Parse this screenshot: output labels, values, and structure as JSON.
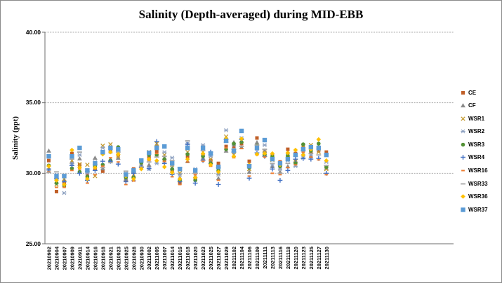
{
  "chart_data": {
    "type": "scatter",
    "title": "Salinity (Depth-averaged) during MID-EBB",
    "xlabel": "",
    "ylabel": "Salinity (ppt)",
    "ylim": [
      25,
      40
    ],
    "y_ticks": [
      40,
      35,
      30,
      25
    ],
    "y_tick_labels": [
      "40.00",
      "35.00",
      "30.00",
      "25.00"
    ],
    "grid": true,
    "legend_position": "right",
    "x_axis_extends_beyond_data": true,
    "x_total_slots": 53,
    "categories": [
      "20210902",
      "20210904",
      "20210907",
      "20210909",
      "20210911",
      "20210914",
      "20210916",
      "20210918",
      "20210921",
      "20210923",
      "20210925",
      "20210928",
      "20210930",
      "20211002",
      "20211005",
      "20211007",
      "20211014",
      "20211016",
      "20211018",
      "20211020",
      "20211023",
      "20211025",
      "20211027",
      "20211029",
      "20211102",
      "20211104",
      "20211106",
      "20211109",
      "20211111",
      "20211113",
      "20211116",
      "20211118",
      "20211120",
      "20211123",
      "20211125",
      "20211127",
      "20211130"
    ],
    "series": [
      {
        "name": "CE",
        "marker": "square",
        "color": "#C05F28",
        "values": [
          30.9,
          28.7,
          29.3,
          31.4,
          30.6,
          29.9,
          30.3,
          30.15,
          31.6,
          31.3,
          29.5,
          30.3,
          30.8,
          31.1,
          31.55,
          30.9,
          30.2,
          29.3,
          31.2,
          29.6,
          31.3,
          30.9,
          30.7,
          31.9,
          31.9,
          32.1,
          30.85,
          32.5,
          31.5,
          31.3,
          30.8,
          31.7,
          31.4,
          31.8,
          31.5,
          31.6,
          31.5
        ]
      },
      {
        "name": "CF",
        "marker": "triangle",
        "color": "#8B8B8B",
        "values": [
          31.6,
          29.4,
          29.5,
          30.8,
          31.05,
          29.7,
          31.1,
          30.35,
          31.0,
          31.1,
          29.6,
          29.8,
          30.6,
          30.6,
          32.0,
          31.1,
          30.4,
          29.7,
          30.85,
          29.8,
          31.1,
          30.8,
          29.65,
          31.6,
          32.2,
          31.85,
          30.1,
          32.2,
          31.6,
          30.5,
          30.1,
          30.5,
          30.9,
          31.4,
          31.2,
          31.9,
          30.4
        ]
      },
      {
        "name": "WSR1",
        "marker": "x",
        "color": "#C49A2E",
        "values": [
          30.4,
          29.2,
          29.6,
          30.9,
          30.65,
          30.6,
          29.8,
          31.95,
          32.05,
          31.2,
          29.9,
          29.9,
          30.7,
          31.5,
          32.1,
          31.3,
          30.6,
          30.0,
          31.5,
          30.1,
          31.5,
          31.0,
          30.0,
          32.6,
          31.3,
          32.3,
          30.3,
          31.9,
          31.45,
          30.95,
          30.4,
          31.3,
          30.85,
          31.9,
          32.0,
          31.5,
          30.3
        ]
      },
      {
        "name": "WSR2",
        "marker": "asterisk",
        "color": "#8CA0C0",
        "values": [
          30.2,
          29.9,
          28.6,
          30.7,
          31.3,
          30.0,
          30.8,
          31.8,
          31.5,
          31.6,
          30.0,
          29.5,
          30.5,
          30.3,
          30.7,
          31.5,
          31.1,
          29.9,
          32.1,
          30.3,
          32.0,
          31.2,
          29.9,
          33.05,
          32.0,
          32.5,
          30.5,
          31.7,
          32.0,
          30.6,
          30.3,
          30.9,
          30.5,
          31.1,
          31.3,
          31.7,
          30.8
        ]
      },
      {
        "name": "WSR3",
        "marker": "circle",
        "color": "#539136",
        "values": [
          30.55,
          29.3,
          29.1,
          30.35,
          30.1,
          29.75,
          30.5,
          30.6,
          30.9,
          31.85,
          29.7,
          29.7,
          30.75,
          31.3,
          31.3,
          31.0,
          30.3,
          29.5,
          31.35,
          29.5,
          31.2,
          30.7,
          30.2,
          31.7,
          32.1,
          32.2,
          30.4,
          31.95,
          31.3,
          31.2,
          30.5,
          31.25,
          30.7,
          32.05,
          31.6,
          32.1,
          30.45
        ]
      },
      {
        "name": "WSR4",
        "marker": "plus",
        "color": "#4472C4",
        "values": [
          30.3,
          29.6,
          29.4,
          30.55,
          30.0,
          29.5,
          30.2,
          30.85,
          30.85,
          30.65,
          29.4,
          30.0,
          30.4,
          30.35,
          32.25,
          30.7,
          29.9,
          29.4,
          32.05,
          29.3,
          30.9,
          31.5,
          29.2,
          32.4,
          31.5,
          32.4,
          29.65,
          31.45,
          31.2,
          30.3,
          29.5,
          30.2,
          31.0,
          31.05,
          31.0,
          31.05,
          30.0
        ]
      },
      {
        "name": "WSR16",
        "marker": "dash-short",
        "color": "#ED7D31",
        "values": [
          30.1,
          29.0,
          29.0,
          30.2,
          30.3,
          29.3,
          29.9,
          30.5,
          31.1,
          30.8,
          29.2,
          29.45,
          30.35,
          30.9,
          31.4,
          30.85,
          29.75,
          29.2,
          30.8,
          29.9,
          30.85,
          30.5,
          29.5,
          31.8,
          31.1,
          31.75,
          29.8,
          31.3,
          31.15,
          30.0,
          29.9,
          30.4,
          30.6,
          31.5,
          31.15,
          30.95,
          29.9
        ]
      },
      {
        "name": "WSR33",
        "marker": "dash",
        "color": "#A6A6A6",
        "values": [
          30.05,
          30.1,
          29.9,
          31.0,
          31.5,
          30.1,
          30.6,
          30.4,
          30.75,
          31.5,
          30.15,
          30.1,
          30.45,
          30.8,
          31.15,
          31.2,
          30.9,
          30.4,
          32.3,
          30.0,
          31.6,
          31.3,
          30.4,
          32.2,
          31.7,
          31.9,
          30.6,
          32.0,
          31.7,
          30.7,
          30.0,
          30.7,
          31.2,
          31.6,
          31.4,
          31.3,
          30.55
        ]
      },
      {
        "name": "WSR36",
        "marker": "diamond",
        "color": "#FFC000",
        "values": [
          30.5,
          29.5,
          29.2,
          31.65,
          30.4,
          29.6,
          30.4,
          31.35,
          31.5,
          31.35,
          29.8,
          29.6,
          30.3,
          31.0,
          30.9,
          30.45,
          30.05,
          29.6,
          31.0,
          29.7,
          31.4,
          30.6,
          30.1,
          32.45,
          31.2,
          32.45,
          30.6,
          31.35,
          31.4,
          31.4,
          30.6,
          31.45,
          31.65,
          31.3,
          31.7,
          32.4,
          30.9
        ]
      },
      {
        "name": "WSR37",
        "marker": "square-large",
        "color": "#5B9BD5",
        "values": [
          31.2,
          29.8,
          29.8,
          31.2,
          31.8,
          30.2,
          30.7,
          31.5,
          31.8,
          31.7,
          29.9,
          30.2,
          30.9,
          31.45,
          31.8,
          31.9,
          30.7,
          30.3,
          31.8,
          30.2,
          31.8,
          31.4,
          30.45,
          32.3,
          31.6,
          33.0,
          30.5,
          31.8,
          32.35,
          31.0,
          30.7,
          31.0,
          31.3,
          31.7,
          31.85,
          31.8,
          31.3
        ]
      }
    ],
    "axis_colors": {
      "gridline": "#ABABAB",
      "axis_line": "#6E6E6E",
      "tick_text": "#000000"
    }
  }
}
